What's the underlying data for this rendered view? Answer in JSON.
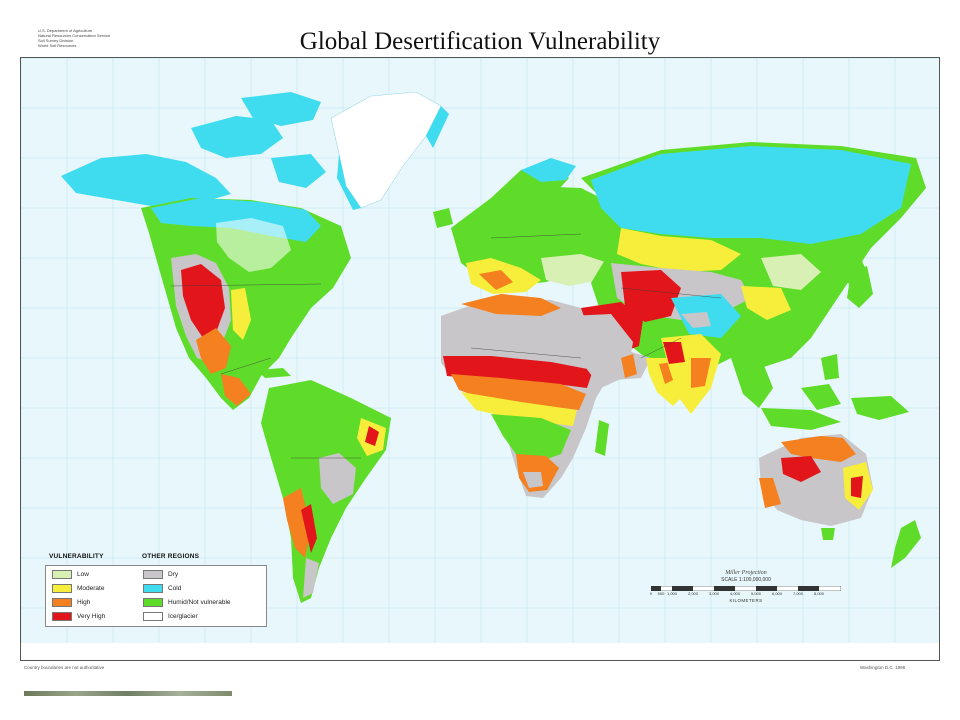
{
  "header": {
    "title": "Global Desertification Vulnerability",
    "agency_lines": [
      "U.S. Department of Agriculture",
      "Natural Resources Conservation Service",
      "Soil Survey Division",
      "World Soil Resources"
    ]
  },
  "legend": {
    "vulnerability_heading": "VULNERABILITY",
    "other_heading": "OTHER REGIONS",
    "vulnerability": [
      {
        "label": "Low",
        "color": "#d9f0b5"
      },
      {
        "label": "Moderate",
        "color": "#f7ee3b"
      },
      {
        "label": "High",
        "color": "#f4801f"
      },
      {
        "label": "Very High",
        "color": "#e2161a"
      }
    ],
    "other": [
      {
        "label": "Dry",
        "color": "#c8c6c8"
      },
      {
        "label": "Cold",
        "color": "#3fdcf0"
      },
      {
        "label": "Humid/Not vulnerable",
        "color": "#5fdc2a"
      },
      {
        "label": "Ice/glacier",
        "color": "#ffffff"
      }
    ]
  },
  "scale": {
    "projection": "Miller Projection",
    "scale_text": "SCALE 1:100,000,000",
    "ticks": [
      "0",
      "500",
      "1,000",
      "2,000",
      "3,000",
      "4,000",
      "5,000",
      "6,000",
      "7,000",
      "8,000"
    ],
    "unit": "KILOMETERS"
  },
  "footer": {
    "left": "Country boundaries are not authoritative",
    "right": "Washington D.C. 1998"
  },
  "colors": {
    "ocean": "#e8f7fb",
    "graticule": "#b9e3ef",
    "border": "#3a3a3a"
  }
}
